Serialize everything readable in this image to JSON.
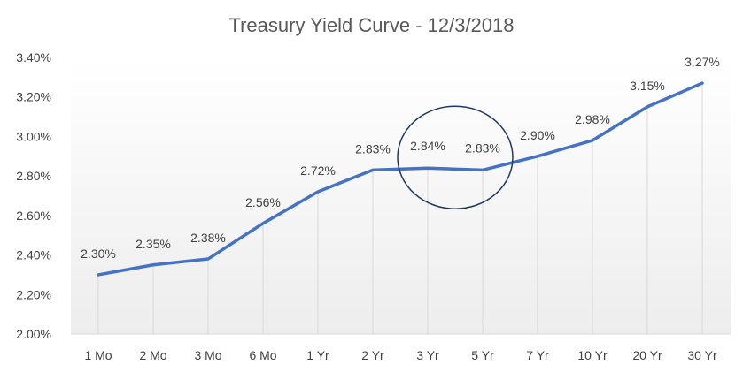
{
  "chart_data": {
    "type": "line",
    "title": "Treasury Yield Curve - 12/3/2018",
    "xlabel": "",
    "ylabel": "",
    "categories": [
      "1 Mo",
      "2 Mo",
      "3 Mo",
      "6 Mo",
      "1 Yr",
      "2 Yr",
      "3 Yr",
      "5 Yr",
      "7 Yr",
      "10 Yr",
      "20 Yr",
      "30 Yr"
    ],
    "values": [
      2.3,
      2.35,
      2.38,
      2.56,
      2.72,
      2.83,
      2.84,
      2.83,
      2.9,
      2.98,
      3.15,
      3.27
    ],
    "data_labels": [
      "2.30%",
      "2.35%",
      "2.38%",
      "2.56%",
      "2.72%",
      "2.83%",
      "2.84%",
      "2.83%",
      "2.90%",
      "2.98%",
      "3.15%",
      "3.27%"
    ],
    "ylim": [
      2.0,
      3.4
    ],
    "yticks": [
      2.0,
      2.2,
      2.4,
      2.6,
      2.8,
      3.0,
      3.2,
      3.4
    ],
    "ytick_labels": [
      "2.00%",
      "2.20%",
      "2.40%",
      "2.60%",
      "2.80%",
      "3.00%",
      "3.20%",
      "3.40%"
    ],
    "drop_lines": true,
    "grid": false,
    "legend": "none",
    "annotation": {
      "shape": "circle",
      "encloses_categories": [
        "3 Yr",
        "5 Yr"
      ]
    },
    "colors": {
      "line": "#4472C4",
      "drop_line": "#D9D9D9",
      "annotation": "#1F3864",
      "background_gradient_top": "#FFFFFF",
      "background_gradient_bottom": "#EDEDED"
    }
  }
}
